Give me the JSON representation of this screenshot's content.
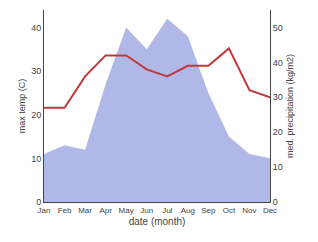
{
  "chart_data": {
    "type": "line",
    "categories": [
      "Jan",
      "Feb",
      "Mar",
      "Apr",
      "May",
      "Jun",
      "Jul",
      "Aug",
      "Sep",
      "Oct",
      "Nov",
      "Dec"
    ],
    "series": [
      {
        "type": "area",
        "color": "#b0b8e8",
        "values": [
          11,
          13,
          12,
          27,
          40,
          35,
          42,
          38,
          25,
          15,
          11,
          10
        ]
      },
      {
        "type": "line",
        "color": "#c0393b",
        "axis": "y2",
        "values": [
          27,
          27,
          36,
          42,
          42,
          38,
          36,
          39,
          39,
          44,
          32,
          30
        ]
      }
    ],
    "x_label": "date (month)",
    "y_label": "max temp (C)",
    "y2_label": "med. precipitation (kg/m2)",
    "ylim": [
      0,
      44
    ],
    "yticks": [
      0,
      10,
      20,
      30,
      40
    ],
    "y2lim": [
      0,
      55
    ],
    "y2ticks": [
      0,
      10,
      20,
      30,
      40,
      50
    ],
    "grid": false
  }
}
